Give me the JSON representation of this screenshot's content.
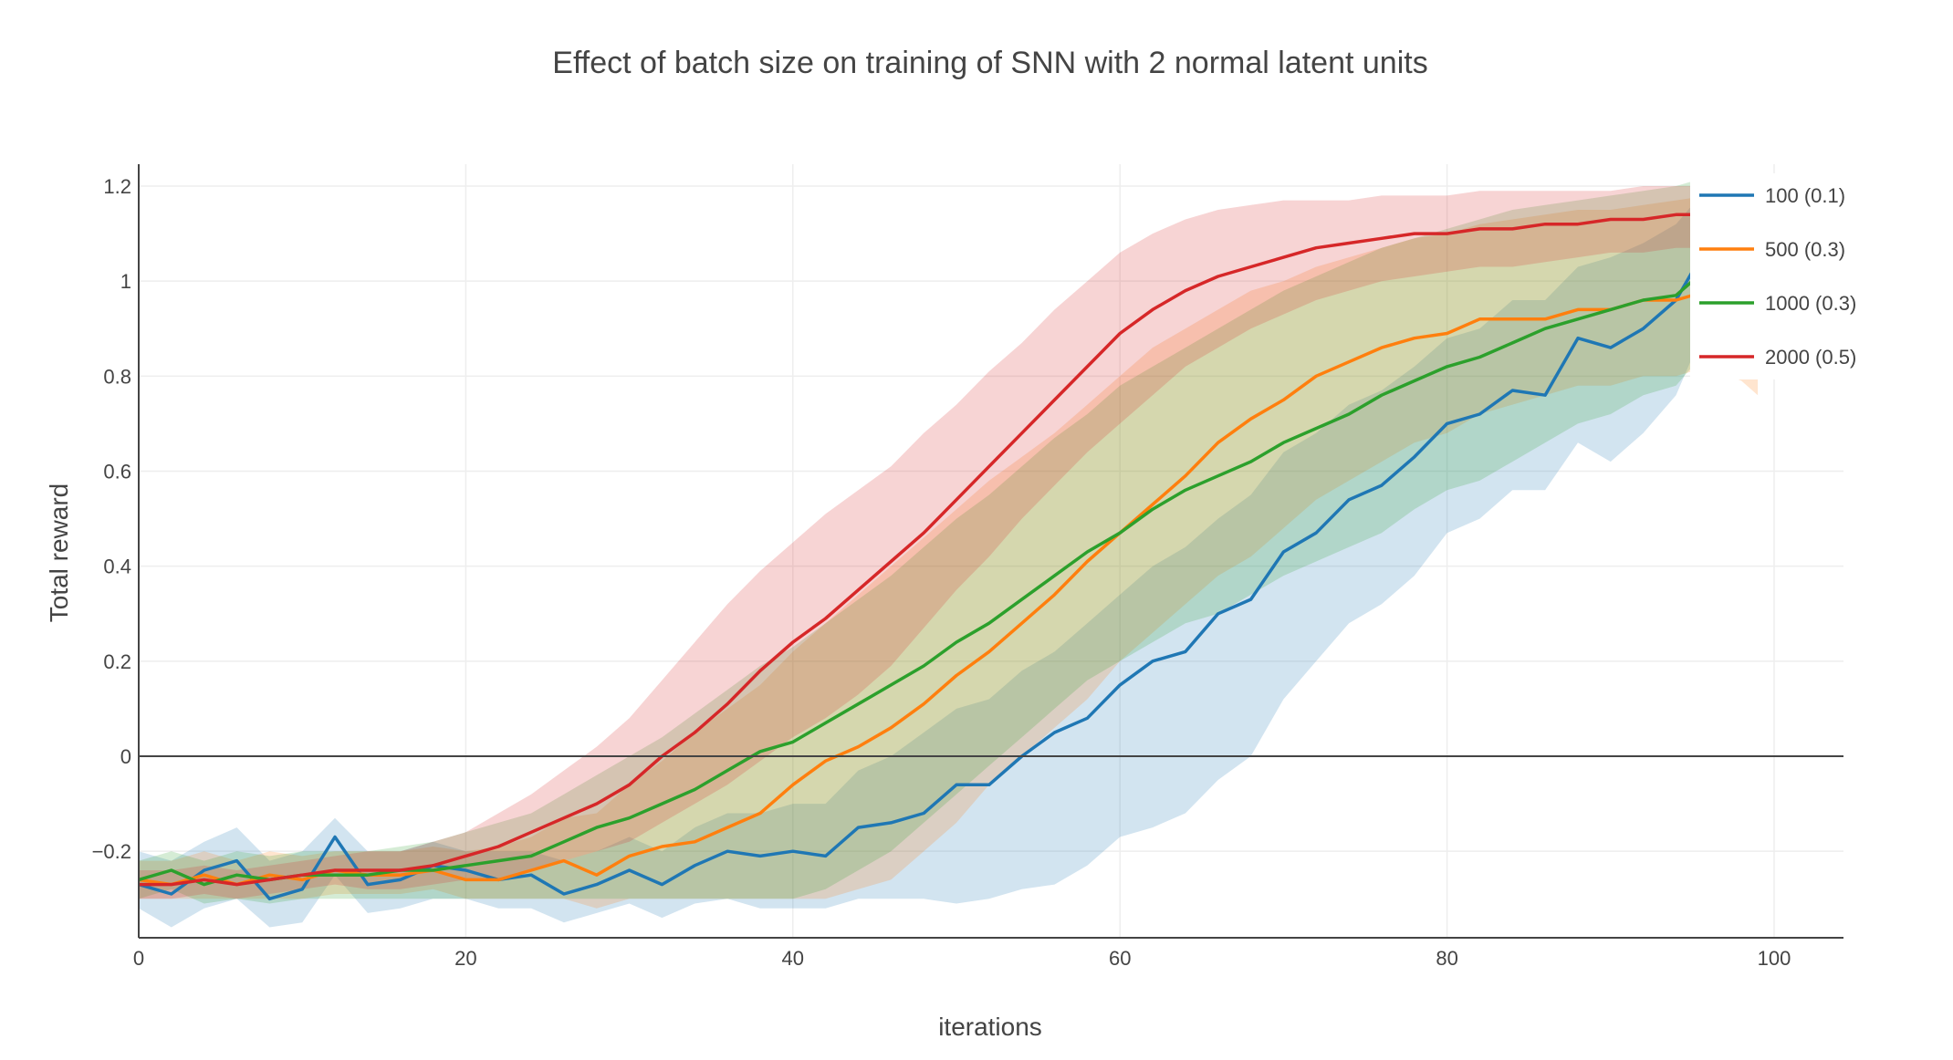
{
  "chart_data": {
    "type": "line",
    "title": "Effect of batch size on training of SNN with 2 normal latent units",
    "xlabel": "iterations",
    "ylabel": "Total reward",
    "xlim": [
      0,
      104
    ],
    "ylim": [
      -0.38,
      1.24
    ],
    "x_ticks": [
      0,
      20,
      40,
      60,
      80,
      100
    ],
    "y_ticks": [
      -0.2,
      0,
      0.2,
      0.4,
      0.6,
      0.8,
      1,
      1.2
    ],
    "x_tick_labels": [
      "0",
      "20",
      "40",
      "60",
      "80",
      "100"
    ],
    "y_tick_labels": [
      "−0.2",
      "0",
      "0.2",
      "0.4",
      "0.6",
      "0.8",
      "1",
      "1.2"
    ],
    "grid": true,
    "zero_line": true,
    "legend_position": "top-right",
    "shaded_bands": true,
    "series": [
      {
        "name": "100 (0.1)",
        "color": "#1f77b4",
        "fill": "rgba(31,119,180,0.2)",
        "x": [
          0,
          2,
          4,
          6,
          8,
          10,
          12,
          14,
          16,
          18,
          20,
          22,
          24,
          26,
          28,
          30,
          32,
          34,
          36,
          38,
          40,
          42,
          44,
          46,
          48,
          50,
          52,
          54,
          56,
          58,
          60,
          62,
          64,
          66,
          68,
          70,
          72,
          74,
          76,
          78,
          80,
          82,
          84,
          86,
          88,
          90,
          92,
          94,
          95
        ],
        "y": [
          -0.27,
          -0.29,
          -0.24,
          -0.22,
          -0.3,
          -0.28,
          -0.17,
          -0.27,
          -0.26,
          -0.23,
          -0.24,
          -0.26,
          -0.25,
          -0.29,
          -0.27,
          -0.24,
          -0.27,
          -0.23,
          -0.2,
          -0.21,
          -0.2,
          -0.21,
          -0.15,
          -0.14,
          -0.12,
          -0.06,
          -0.06,
          0.0,
          0.05,
          0.08,
          0.15,
          0.2,
          0.22,
          0.3,
          0.33,
          0.43,
          0.47,
          0.54,
          0.57,
          0.63,
          0.7,
          0.72,
          0.77,
          0.76,
          0.88,
          0.86,
          0.9,
          0.96,
          1.02
        ],
        "upper": [
          -0.2,
          -0.22,
          -0.18,
          -0.15,
          -0.22,
          -0.2,
          -0.13,
          -0.2,
          -0.2,
          -0.18,
          -0.2,
          -0.2,
          -0.2,
          -0.22,
          -0.2,
          -0.17,
          -0.2,
          -0.15,
          -0.12,
          -0.12,
          -0.1,
          -0.1,
          -0.03,
          0.0,
          0.05,
          0.1,
          0.12,
          0.18,
          0.22,
          0.28,
          0.34,
          0.4,
          0.44,
          0.5,
          0.55,
          0.64,
          0.68,
          0.74,
          0.77,
          0.82,
          0.88,
          0.9,
          0.96,
          0.96,
          1.03,
          1.05,
          1.08,
          1.12,
          1.16
        ],
        "lower": [
          -0.32,
          -0.36,
          -0.32,
          -0.3,
          -0.36,
          -0.35,
          -0.25,
          -0.33,
          -0.32,
          -0.3,
          -0.3,
          -0.32,
          -0.32,
          -0.35,
          -0.33,
          -0.31,
          -0.34,
          -0.31,
          -0.3,
          -0.32,
          -0.32,
          -0.32,
          -0.3,
          -0.3,
          -0.3,
          -0.31,
          -0.3,
          -0.28,
          -0.27,
          -0.23,
          -0.17,
          -0.15,
          -0.12,
          -0.05,
          0.0,
          0.12,
          0.2,
          0.28,
          0.32,
          0.38,
          0.47,
          0.5,
          0.56,
          0.56,
          0.66,
          0.62,
          0.68,
          0.76,
          0.84
        ]
      },
      {
        "name": "500 (0.3)",
        "color": "#ff7f0e",
        "fill": "rgba(255,127,14,0.2)",
        "x": [
          0,
          2,
          4,
          6,
          8,
          10,
          12,
          14,
          16,
          18,
          20,
          22,
          24,
          26,
          28,
          30,
          32,
          34,
          36,
          38,
          40,
          42,
          44,
          46,
          48,
          50,
          52,
          54,
          56,
          58,
          60,
          62,
          64,
          66,
          68,
          70,
          72,
          74,
          76,
          78,
          80,
          82,
          84,
          86,
          88,
          90,
          92,
          94,
          96,
          98,
          99
        ],
        "y": [
          -0.26,
          -0.27,
          -0.25,
          -0.27,
          -0.25,
          -0.26,
          -0.24,
          -0.25,
          -0.25,
          -0.24,
          -0.26,
          -0.26,
          -0.24,
          -0.22,
          -0.25,
          -0.21,
          -0.19,
          -0.18,
          -0.15,
          -0.12,
          -0.06,
          -0.01,
          0.02,
          0.06,
          0.11,
          0.17,
          0.22,
          0.28,
          0.34,
          0.41,
          0.47,
          0.53,
          0.59,
          0.66,
          0.71,
          0.75,
          0.8,
          0.83,
          0.86,
          0.88,
          0.89,
          0.92,
          0.92,
          0.92,
          0.94,
          0.94,
          0.96,
          0.96,
          0.98,
          0.97,
          0.97
        ],
        "upper": [
          -0.22,
          -0.22,
          -0.2,
          -0.22,
          -0.2,
          -0.21,
          -0.2,
          -0.2,
          -0.2,
          -0.19,
          -0.2,
          -0.19,
          -0.17,
          -0.13,
          -0.12,
          -0.06,
          -0.01,
          0.05,
          0.1,
          0.15,
          0.22,
          0.28,
          0.34,
          0.4,
          0.46,
          0.52,
          0.58,
          0.63,
          0.68,
          0.74,
          0.8,
          0.86,
          0.9,
          0.94,
          0.98,
          1.0,
          1.03,
          1.05,
          1.07,
          1.09,
          1.1,
          1.12,
          1.13,
          1.14,
          1.15,
          1.15,
          1.16,
          1.17,
          1.18,
          1.18,
          1.18
        ],
        "lower": [
          -0.3,
          -0.3,
          -0.3,
          -0.3,
          -0.3,
          -0.3,
          -0.29,
          -0.29,
          -0.29,
          -0.28,
          -0.3,
          -0.3,
          -0.3,
          -0.3,
          -0.32,
          -0.3,
          -0.3,
          -0.3,
          -0.3,
          -0.3,
          -0.3,
          -0.3,
          -0.28,
          -0.26,
          -0.2,
          -0.14,
          -0.06,
          0.0,
          0.06,
          0.12,
          0.2,
          0.26,
          0.32,
          0.38,
          0.42,
          0.48,
          0.54,
          0.58,
          0.62,
          0.66,
          0.68,
          0.72,
          0.74,
          0.76,
          0.78,
          0.78,
          0.8,
          0.8,
          0.82,
          0.79,
          0.76
        ]
      },
      {
        "name": "1000 (0.3)",
        "color": "#2ca02c",
        "fill": "rgba(44,160,44,0.2)",
        "x": [
          0,
          2,
          4,
          6,
          8,
          10,
          12,
          14,
          16,
          18,
          20,
          22,
          24,
          26,
          28,
          30,
          32,
          34,
          36,
          38,
          40,
          42,
          44,
          46,
          48,
          50,
          52,
          54,
          56,
          58,
          60,
          62,
          64,
          66,
          68,
          70,
          72,
          74,
          76,
          78,
          80,
          82,
          84,
          86,
          88,
          90,
          92,
          94,
          95
        ],
        "y": [
          -0.26,
          -0.24,
          -0.27,
          -0.25,
          -0.26,
          -0.25,
          -0.25,
          -0.25,
          -0.24,
          -0.24,
          -0.23,
          -0.22,
          -0.21,
          -0.18,
          -0.15,
          -0.13,
          -0.1,
          -0.07,
          -0.03,
          0.01,
          0.03,
          0.07,
          0.11,
          0.15,
          0.19,
          0.24,
          0.28,
          0.33,
          0.38,
          0.43,
          0.47,
          0.52,
          0.56,
          0.59,
          0.62,
          0.66,
          0.69,
          0.72,
          0.76,
          0.79,
          0.82,
          0.84,
          0.87,
          0.9,
          0.92,
          0.94,
          0.96,
          0.97,
          1.0
        ],
        "upper": [
          -0.22,
          -0.2,
          -0.22,
          -0.2,
          -0.21,
          -0.2,
          -0.2,
          -0.2,
          -0.19,
          -0.18,
          -0.16,
          -0.14,
          -0.12,
          -0.08,
          -0.04,
          0.0,
          0.04,
          0.09,
          0.14,
          0.19,
          0.23,
          0.28,
          0.33,
          0.38,
          0.44,
          0.5,
          0.55,
          0.61,
          0.67,
          0.72,
          0.78,
          0.82,
          0.86,
          0.9,
          0.94,
          0.98,
          1.01,
          1.04,
          1.07,
          1.09,
          1.11,
          1.13,
          1.15,
          1.16,
          1.17,
          1.18,
          1.19,
          1.2,
          1.21
        ],
        "lower": [
          -0.3,
          -0.28,
          -0.31,
          -0.3,
          -0.31,
          -0.3,
          -0.3,
          -0.3,
          -0.3,
          -0.3,
          -0.3,
          -0.3,
          -0.3,
          -0.3,
          -0.3,
          -0.3,
          -0.3,
          -0.3,
          -0.3,
          -0.3,
          -0.3,
          -0.28,
          -0.24,
          -0.2,
          -0.14,
          -0.08,
          -0.02,
          0.04,
          0.1,
          0.16,
          0.2,
          0.24,
          0.28,
          0.3,
          0.34,
          0.38,
          0.41,
          0.44,
          0.47,
          0.52,
          0.56,
          0.58,
          0.62,
          0.66,
          0.7,
          0.72,
          0.76,
          0.78,
          0.82
        ]
      },
      {
        "name": "2000 (0.5)",
        "color": "#d62728",
        "fill": "rgba(214,39,40,0.2)",
        "x": [
          0,
          2,
          4,
          6,
          8,
          10,
          12,
          14,
          16,
          18,
          20,
          22,
          24,
          26,
          28,
          30,
          32,
          34,
          36,
          38,
          40,
          42,
          44,
          46,
          48,
          50,
          52,
          54,
          56,
          58,
          60,
          62,
          64,
          66,
          68,
          70,
          72,
          74,
          76,
          78,
          80,
          82,
          84,
          86,
          88,
          90,
          92,
          94,
          95
        ],
        "y": [
          -0.27,
          -0.27,
          -0.26,
          -0.27,
          -0.26,
          -0.25,
          -0.24,
          -0.24,
          -0.24,
          -0.23,
          -0.21,
          -0.19,
          -0.16,
          -0.13,
          -0.1,
          -0.06,
          0.0,
          0.05,
          0.11,
          0.18,
          0.24,
          0.29,
          0.35,
          0.41,
          0.47,
          0.54,
          0.61,
          0.68,
          0.75,
          0.82,
          0.89,
          0.94,
          0.98,
          1.01,
          1.03,
          1.05,
          1.07,
          1.08,
          1.09,
          1.1,
          1.1,
          1.11,
          1.11,
          1.12,
          1.12,
          1.13,
          1.13,
          1.14,
          1.14
        ],
        "upper": [
          -0.24,
          -0.24,
          -0.23,
          -0.24,
          -0.23,
          -0.22,
          -0.21,
          -0.2,
          -0.2,
          -0.18,
          -0.16,
          -0.12,
          -0.08,
          -0.03,
          0.02,
          0.08,
          0.16,
          0.24,
          0.32,
          0.39,
          0.45,
          0.51,
          0.56,
          0.61,
          0.68,
          0.74,
          0.81,
          0.87,
          0.94,
          1.0,
          1.06,
          1.1,
          1.13,
          1.15,
          1.16,
          1.17,
          1.17,
          1.17,
          1.18,
          1.18,
          1.18,
          1.19,
          1.19,
          1.19,
          1.19,
          1.19,
          1.2,
          1.2,
          1.2
        ],
        "lower": [
          -0.3,
          -0.3,
          -0.29,
          -0.3,
          -0.29,
          -0.28,
          -0.27,
          -0.28,
          -0.28,
          -0.27,
          -0.26,
          -0.26,
          -0.24,
          -0.22,
          -0.2,
          -0.18,
          -0.14,
          -0.1,
          -0.06,
          -0.01,
          0.04,
          0.08,
          0.13,
          0.19,
          0.27,
          0.35,
          0.42,
          0.5,
          0.57,
          0.64,
          0.7,
          0.76,
          0.82,
          0.86,
          0.9,
          0.93,
          0.96,
          0.98,
          1.0,
          1.01,
          1.02,
          1.03,
          1.03,
          1.04,
          1.05,
          1.06,
          1.06,
          1.07,
          1.07
        ]
      }
    ]
  }
}
